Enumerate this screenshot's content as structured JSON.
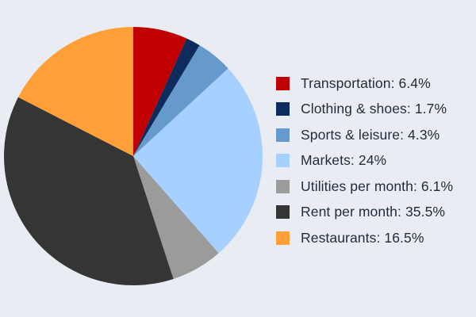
{
  "chart_data": {
    "type": "pie",
    "title": "",
    "legend_position": "right",
    "start_angle_deg": 0,
    "direction": "clockwise",
    "slices": [
      {
        "label": "Transportation",
        "value": 6.4,
        "legend_text": "Transportation: 6.4%",
        "color": "#c00000"
      },
      {
        "label": "Clothing & shoes",
        "value": 1.7,
        "legend_text": "Clothing & shoes: 1.7%",
        "color": "#0d2b5c"
      },
      {
        "label": "Sports & leisure",
        "value": 4.3,
        "legend_text": "Sports & leisure: 4.3%",
        "color": "#6699cc"
      },
      {
        "label": "Markets",
        "value": 24,
        "legend_text": "Markets: 24%",
        "color": "#a6d0ff"
      },
      {
        "label": "Utilities per month",
        "value": 6.1,
        "legend_text": "Utilities per month: 6.1%",
        "color": "#9b9b9b"
      },
      {
        "label": "Rent per month",
        "value": 35.5,
        "legend_text": "Rent per month: 35.5%",
        "color": "#353535"
      },
      {
        "label": "Restaurants",
        "value": 16.5,
        "legend_text": "Restaurants: 16.5%",
        "color": "#ff9f38"
      }
    ]
  }
}
